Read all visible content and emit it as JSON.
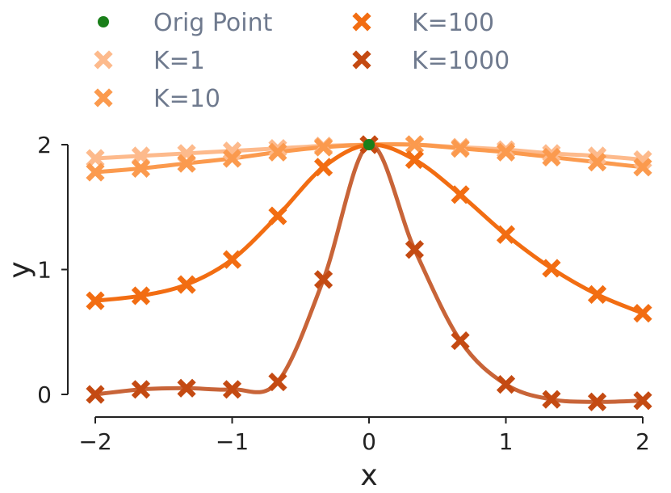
{
  "chart_data": {
    "type": "line",
    "title": "",
    "xlabel": "x",
    "ylabel": "y",
    "xlim": [
      -2,
      2
    ],
    "ylim": [
      -0.1,
      2.05
    ],
    "xticks": [
      "−2",
      "−1",
      "0",
      "1",
      "2"
    ],
    "yticks": [
      "0",
      "1",
      "2"
    ],
    "grid": false,
    "legend_position": "top",
    "orig_point": {
      "name": "Orig Point",
      "x": 0,
      "y": 2,
      "color": "#1a7f1a"
    },
    "series": [
      {
        "name": "K=1",
        "color": "#fdba8c",
        "x": [
          -2,
          -1.667,
          -1.333,
          -1,
          -0.667,
          -0.333,
          0,
          0.333,
          0.667,
          1,
          1.333,
          1.667,
          2
        ],
        "y": [
          1.89,
          1.91,
          1.93,
          1.95,
          1.97,
          1.99,
          2.0,
          2.0,
          1.98,
          1.96,
          1.93,
          1.91,
          1.88
        ]
      },
      {
        "name": "K=10",
        "color": "#fb9a4e",
        "x": [
          -2,
          -1.667,
          -1.333,
          -1,
          -0.667,
          -0.333,
          0,
          0.333,
          0.667,
          1,
          1.333,
          1.667,
          2
        ],
        "y": [
          1.78,
          1.81,
          1.85,
          1.89,
          1.94,
          1.98,
          2.0,
          2.0,
          1.97,
          1.94,
          1.9,
          1.86,
          1.82
        ]
      },
      {
        "name": "K=100",
        "color": "#f26d12",
        "x": [
          -2,
          -1.667,
          -1.333,
          -1,
          -0.667,
          -0.333,
          0,
          0.333,
          0.667,
          1,
          1.333,
          1.667,
          2
        ],
        "y": [
          0.75,
          0.79,
          0.88,
          1.08,
          1.43,
          1.82,
          2.0,
          1.88,
          1.6,
          1.28,
          1.01,
          0.8,
          0.65
        ]
      },
      {
        "name": "K=1000",
        "color": "#c44a12",
        "line_color": "#c86438",
        "x": [
          -2,
          -1.667,
          -1.333,
          -1,
          -0.667,
          -0.333,
          0,
          0.333,
          0.667,
          1,
          1.333,
          1.667,
          2
        ],
        "y": [
          0.0,
          0.04,
          0.05,
          0.04,
          0.1,
          0.92,
          2.0,
          1.16,
          0.43,
          0.08,
          -0.04,
          -0.06,
          -0.05
        ]
      }
    ]
  }
}
